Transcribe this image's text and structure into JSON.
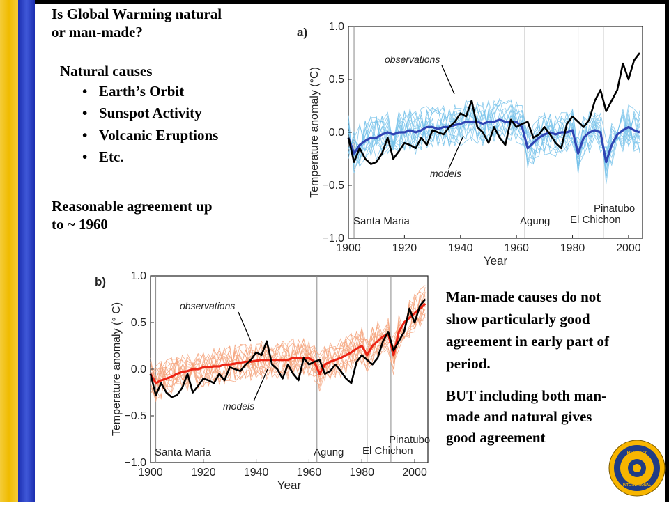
{
  "slide": {
    "title_line1": "Is Global Warming natural",
    "title_line2": "or man-made?",
    "natural_heading": "Natural causes",
    "natural_causes": [
      "Earth’s Orbit",
      "Sunspot Activity",
      "Volcanic Eruptions",
      "Etc."
    ],
    "agreement_line1": "Reasonable agreement up",
    "agreement_line2": "to ~ 1960",
    "manmade_line1": "Man-made causes do not",
    "manmade_line2": "show particularly good",
    "manmade_line3": "agreement in early part of",
    "manmade_line4": "period.",
    "both_line1": "BUT including both man-",
    "both_line2": "made and natural gives",
    "both_line3": "good agreement"
  },
  "colors": {
    "stripe_yellow": "#f2c200",
    "stripe_blue": "#2a40c8",
    "observations": "#000000",
    "model_mean_a": "#2f45b4",
    "model_runs_a": "#76c2ea",
    "model_mean_b": "#ec2515",
    "model_runs_b": "#f5a27a"
  },
  "chart_data": [
    {
      "type": "line",
      "panel_label": "a)",
      "xlabel": "Year",
      "ylabel": "Temperature anomaly (°C)",
      "xlim": [
        1900,
        2005
      ],
      "ylim": [
        -1.0,
        1.0
      ],
      "xticks": [
        1900,
        1920,
        1940,
        1960,
        1980,
        2000
      ],
      "yticks": [
        -1.0,
        -0.5,
        0.0,
        0.5,
        1.0
      ],
      "ytick_labels": [
        "−1.0",
        "−0.5",
        "0.0",
        "0.5",
        "1.0"
      ],
      "annotations": [
        "observations",
        "models"
      ],
      "eruptions": [
        {
          "name": "Santa Maria",
          "year": 1902
        },
        {
          "name": "Agung",
          "year": 1963
        },
        {
          "name": "El Chichon",
          "year": 1982
        },
        {
          "name": "Pinatubo",
          "year": 1991
        }
      ],
      "x": [
        1900,
        1902,
        1904,
        1906,
        1908,
        1910,
        1912,
        1914,
        1916,
        1918,
        1920,
        1922,
        1924,
        1926,
        1928,
        1930,
        1932,
        1934,
        1936,
        1938,
        1940,
        1942,
        1944,
        1946,
        1948,
        1950,
        1952,
        1954,
        1956,
        1958,
        1960,
        1962,
        1964,
        1966,
        1968,
        1970,
        1972,
        1974,
        1976,
        1978,
        1980,
        1982,
        1984,
        1986,
        1988,
        1990,
        1992,
        1994,
        1996,
        1998,
        2000,
        2002,
        2004
      ],
      "series": [
        {
          "name": "observations",
          "values": [
            -0.05,
            -0.28,
            -0.15,
            -0.25,
            -0.3,
            -0.28,
            -0.2,
            -0.05,
            -0.25,
            -0.18,
            -0.1,
            -0.12,
            -0.15,
            -0.05,
            -0.12,
            0.02,
            0.0,
            -0.02,
            0.05,
            0.1,
            0.18,
            0.15,
            0.3,
            0.05,
            0.0,
            -0.1,
            0.05,
            -0.05,
            -0.12,
            0.12,
            0.05,
            0.08,
            0.1,
            -0.05,
            -0.02,
            0.05,
            -0.02,
            -0.1,
            -0.15,
            0.08,
            0.15,
            0.1,
            0.05,
            0.12,
            0.3,
            0.4,
            0.2,
            0.3,
            0.4,
            0.65,
            0.5,
            0.68,
            0.75
          ]
        },
        {
          "name": "models",
          "values": [
            -0.05,
            -0.2,
            -0.12,
            -0.08,
            -0.05,
            -0.05,
            -0.02,
            0.0,
            -0.02,
            0.0,
            0.0,
            0.02,
            0.0,
            0.02,
            0.05,
            0.05,
            0.03,
            0.05,
            0.05,
            0.07,
            0.08,
            0.1,
            0.1,
            0.1,
            0.08,
            0.1,
            0.1,
            0.12,
            0.1,
            0.1,
            0.1,
            0.05,
            -0.15,
            -0.1,
            -0.05,
            -0.02,
            0.0,
            -0.02,
            0.0,
            0.0,
            0.02,
            -0.2,
            -0.05,
            0.0,
            0.02,
            0.0,
            -0.28,
            -0.12,
            -0.02,
            0.02,
            0.05,
            0.02,
            0.0
          ]
        }
      ]
    },
    {
      "type": "line",
      "panel_label": "b)",
      "xlabel": "Year",
      "ylabel": "Temperature anomaly (° C)",
      "xlim": [
        1900,
        2005
      ],
      "ylim": [
        -1.0,
        1.0
      ],
      "xticks": [
        1900,
        1920,
        1940,
        1960,
        1980,
        2000
      ],
      "yticks": [
        -1.0,
        -0.5,
        0.0,
        0.5,
        1.0
      ],
      "ytick_labels": [
        "−1.0",
        "−0.5",
        "0.0",
        "0.5",
        "1.0"
      ],
      "annotations": [
        "observations",
        "models"
      ],
      "eruptions": [
        {
          "name": "Santa Maria",
          "year": 1902
        },
        {
          "name": "Agung",
          "year": 1963
        },
        {
          "name": "El Chichon",
          "year": 1982
        },
        {
          "name": "Pinatubo",
          "year": 1991
        }
      ],
      "x": [
        1900,
        1902,
        1904,
        1906,
        1908,
        1910,
        1912,
        1914,
        1916,
        1918,
        1920,
        1922,
        1924,
        1926,
        1928,
        1930,
        1932,
        1934,
        1936,
        1938,
        1940,
        1942,
        1944,
        1946,
        1948,
        1950,
        1952,
        1954,
        1956,
        1958,
        1960,
        1962,
        1964,
        1966,
        1968,
        1970,
        1972,
        1974,
        1976,
        1978,
        1980,
        1982,
        1984,
        1986,
        1988,
        1990,
        1992,
        1994,
        1996,
        1998,
        2000,
        2002,
        2004
      ],
      "series": [
        {
          "name": "observations",
          "values": [
            -0.05,
            -0.28,
            -0.15,
            -0.25,
            -0.3,
            -0.28,
            -0.2,
            -0.05,
            -0.25,
            -0.18,
            -0.1,
            -0.12,
            -0.15,
            -0.05,
            -0.12,
            0.02,
            0.0,
            -0.02,
            0.05,
            0.1,
            0.18,
            0.15,
            0.3,
            0.05,
            0.0,
            -0.1,
            0.05,
            -0.05,
            -0.12,
            0.12,
            0.05,
            0.08,
            0.1,
            -0.05,
            -0.02,
            0.05,
            -0.02,
            -0.1,
            -0.15,
            0.08,
            0.15,
            0.1,
            0.05,
            0.12,
            0.3,
            0.4,
            0.2,
            0.3,
            0.4,
            0.65,
            0.5,
            0.68,
            0.75
          ]
        },
        {
          "name": "models",
          "values": [
            -0.05,
            -0.15,
            -0.12,
            -0.1,
            -0.08,
            -0.05,
            -0.03,
            -0.02,
            0.0,
            0.0,
            0.02,
            0.02,
            0.03,
            0.03,
            0.05,
            0.05,
            0.06,
            0.07,
            0.08,
            0.08,
            0.09,
            0.1,
            0.1,
            0.1,
            0.1,
            0.1,
            0.1,
            0.12,
            0.12,
            0.12,
            0.12,
            0.08,
            -0.05,
            0.05,
            0.08,
            0.1,
            0.12,
            0.15,
            0.18,
            0.22,
            0.25,
            0.15,
            0.25,
            0.3,
            0.35,
            0.38,
            0.15,
            0.4,
            0.5,
            0.55,
            0.6,
            0.65,
            0.7
          ]
        }
      ]
    }
  ]
}
